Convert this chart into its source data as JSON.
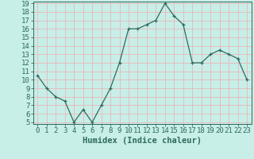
{
  "x": [
    0,
    1,
    2,
    3,
    4,
    5,
    6,
    7,
    8,
    9,
    10,
    11,
    12,
    13,
    14,
    15,
    16,
    17,
    18,
    19,
    20,
    21,
    22,
    23
  ],
  "y": [
    10.5,
    9.0,
    8.0,
    7.5,
    5.0,
    6.5,
    5.0,
    7.0,
    9.0,
    12.0,
    16.0,
    16.0,
    16.5,
    17.0,
    19.0,
    17.5,
    16.5,
    12.0,
    12.0,
    13.0,
    13.5,
    13.0,
    12.5,
    10.0
  ],
  "xlabel": "Humidex (Indice chaleur)",
  "ylim": [
    5,
    19
  ],
  "xlim": [
    -0.5,
    23.5
  ],
  "yticks": [
    5,
    6,
    7,
    8,
    9,
    10,
    11,
    12,
    13,
    14,
    15,
    16,
    17,
    18,
    19
  ],
  "xticks": [
    0,
    1,
    2,
    3,
    4,
    5,
    6,
    7,
    8,
    9,
    10,
    11,
    12,
    13,
    14,
    15,
    16,
    17,
    18,
    19,
    20,
    21,
    22,
    23
  ],
  "xtick_labels": [
    "0",
    "1",
    "2",
    "3",
    "4",
    "5",
    "6",
    "7",
    "8",
    "9",
    "10",
    "11",
    "12",
    "13",
    "14",
    "15",
    "16",
    "17",
    "18",
    "19",
    "20",
    "21",
    "22",
    "23"
  ],
  "line_color": "#2d6b5e",
  "marker": "+",
  "bg_color": "#c8eee8",
  "grid_color": "#e8b8b8",
  "xlabel_fontsize": 7.5,
  "tick_fontsize": 6.5
}
